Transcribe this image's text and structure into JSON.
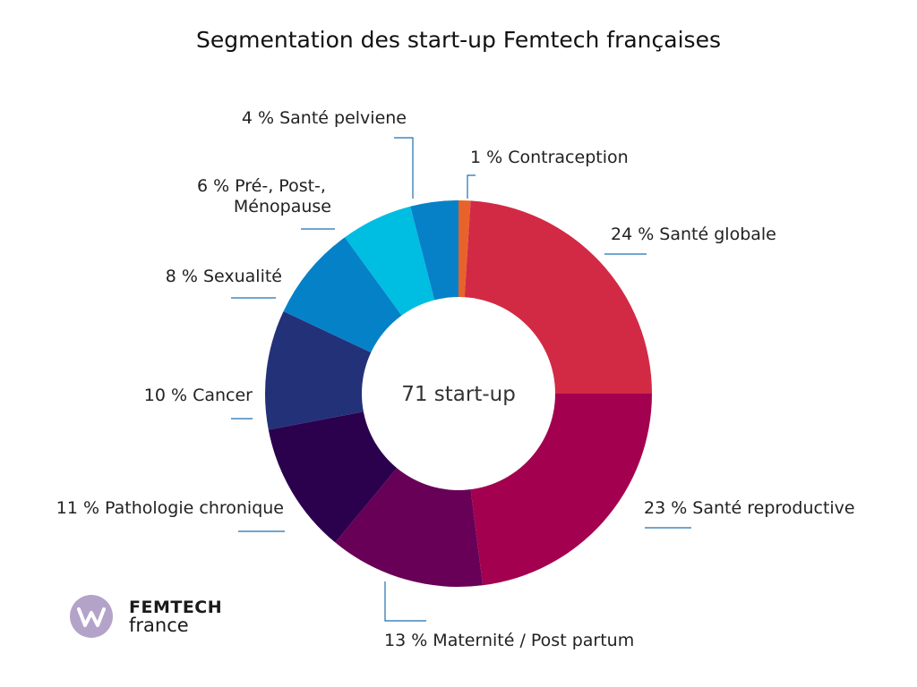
{
  "chart_data": {
    "type": "pie",
    "title": "Segmentation des start-up Femtech françaises",
    "center_label": "71 start-up",
    "slices": [
      {
        "label": "1 % Contraception",
        "value": 1,
        "color": "#e8632a"
      },
      {
        "label": "24 % Santé globale",
        "value": 24,
        "color": "#d22a45"
      },
      {
        "label": "23 % Santé reproductive",
        "value": 23,
        "color": "#a3004f"
      },
      {
        "label": "13 % Maternité / Post partum",
        "value": 13,
        "color": "#680057"
      },
      {
        "label": "11 % Pathologie chronique",
        "value": 11,
        "color": "#2b004d"
      },
      {
        "label": "10 % Cancer",
        "value": 10,
        "color": "#233179"
      },
      {
        "label": "8 % Sexualité",
        "value": 8,
        "color": "#0581c8"
      },
      {
        "label": "6 % Pré-, Post-, Ménopause",
        "value": 6,
        "color": "#00bde2"
      },
      {
        "label": "4 % Santé pelviene",
        "value": 4,
        "color": "#0681c7"
      }
    ]
  },
  "logo": {
    "name": "FEMTECH",
    "sub": "france",
    "mark_color": "#b4a3c9"
  }
}
